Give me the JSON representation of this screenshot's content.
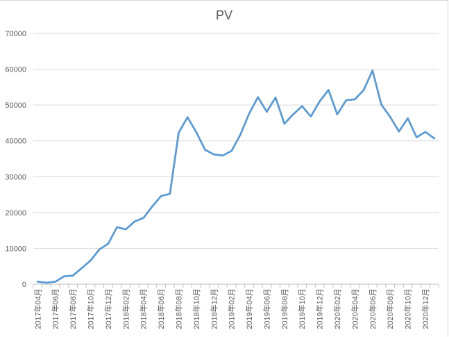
{
  "chart_data": {
    "type": "line",
    "title": "PV",
    "xlabel": "",
    "ylabel": "",
    "ylim": [
      0,
      70000
    ],
    "yticks": [
      "0",
      "10000",
      "20000",
      "30000",
      "40000",
      "50000",
      "60000",
      "70000"
    ],
    "grid": true,
    "legend": "none",
    "line_color": "#5b9bd5",
    "x": [
      "2017年04月",
      "2017年05月",
      "2017年06月",
      "2017年07月",
      "2017年08月",
      "2017年09月",
      "2017年10月",
      "2017年11月",
      "2017年12月",
      "2018年01月",
      "2018年02月",
      "2018年03月",
      "2018年04月",
      "2018年05月",
      "2018年06月",
      "2018年07月",
      "2018年08月",
      "2018年09月",
      "2018年10月",
      "2018年11月",
      "2018年12月",
      "2019年01月",
      "2019年02月",
      "2019年03月",
      "2019年04月",
      "2019年05月",
      "2019年06月",
      "2019年07月",
      "2019年08月",
      "2019年09月",
      "2019年10月",
      "2019年11月",
      "2019年12月",
      "2020年01月",
      "2020年02月",
      "2020年03月",
      "2020年04月",
      "2020年05月",
      "2020年06月",
      "2020年07月",
      "2020年08月",
      "2020年09月",
      "2020年10月",
      "2020年11月",
      "2020年12月",
      "2021年01月"
    ],
    "xtick_labels": [
      "2017年04月",
      "2017年06月",
      "2017年08月",
      "2017年10月",
      "2017年12月",
      "2018年02月",
      "2018年04月",
      "2018年06月",
      "2018年08月",
      "2018年10月",
      "2018年12月",
      "2019年02月",
      "2019年04月",
      "2019年06月",
      "2019年08月",
      "2019年10月",
      "2019年12月",
      "2020年02月",
      "2020年04月",
      "2020年06月",
      "2020年08月",
      "2020年10月",
      "2020年12月"
    ],
    "series": [
      {
        "values": [
          700,
          400,
          700,
          2200,
          2400,
          4500,
          6600,
          9700,
          11300,
          15900,
          15300,
          17500,
          18500,
          21700,
          24600,
          25200,
          42300,
          46600,
          42400,
          37500,
          36200,
          35900,
          37200,
          41700,
          47600,
          52200,
          48100,
          52100,
          44800,
          47400,
          49700,
          46800,
          51000,
          54200,
          47400,
          51300,
          51600,
          54200,
          59600,
          50100,
          46700,
          42600,
          46300,
          41000,
          42500,
          40700
        ]
      }
    ]
  }
}
